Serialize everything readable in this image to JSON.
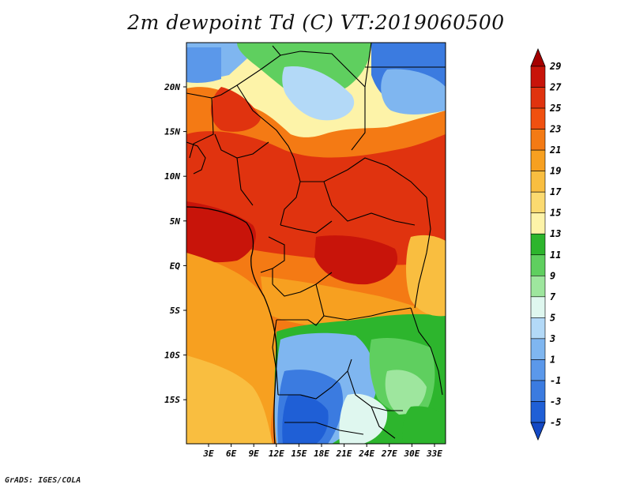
{
  "title": "2m dewpoint Td (C) VT:2019060500",
  "credit": "GrADS: IGES/COLA",
  "map": {
    "lat_labels": [
      "20N",
      "15N",
      "10N",
      "5N",
      "EQ",
      "5S",
      "10S",
      "15S"
    ],
    "lon_labels": [
      "3E",
      "6E",
      "9E",
      "12E",
      "15E",
      "18E",
      "21E",
      "24E",
      "27E",
      "30E",
      "33E"
    ],
    "lat_range": [
      -19.5,
      24.5
    ],
    "lon_range": [
      0,
      35
    ]
  },
  "colorbar": {
    "labels": [
      "29",
      "27",
      "25",
      "23",
      "21",
      "19",
      "17",
      "15",
      "13",
      "11",
      "9",
      "7",
      "5",
      "3",
      "1",
      "-1",
      "-3",
      "-5"
    ],
    "colors": [
      "#a50000",
      "#c8140a",
      "#e0330f",
      "#f05010",
      "#f47a14",
      "#f7a020",
      "#f9be40",
      "#fbda70",
      "#fdf3a8",
      "#2db52d",
      "#5fcf5f",
      "#9ee69e",
      "#dff7ef",
      "#b3d9f7",
      "#7fb6f0",
      "#5b98ea",
      "#3b7be0",
      "#1f5fd6",
      "#1449c4"
    ]
  }
}
